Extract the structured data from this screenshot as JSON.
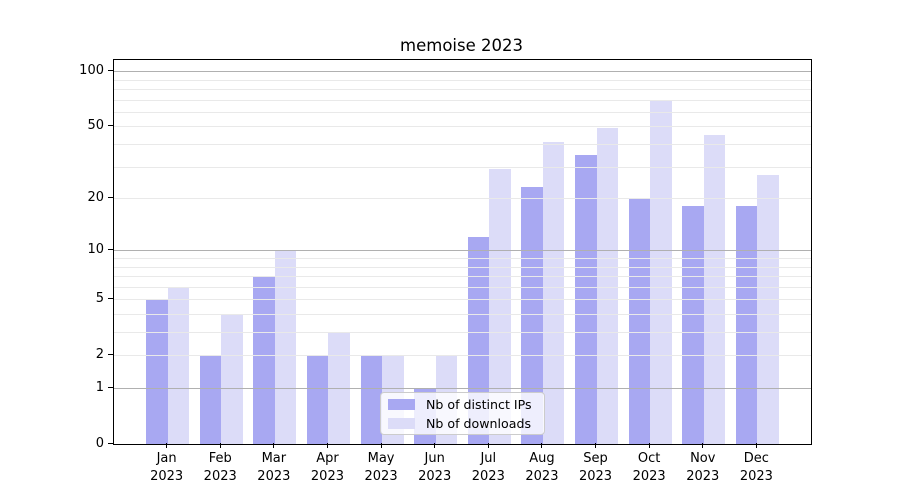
{
  "title": "memoise 2023",
  "chart_data": {
    "type": "bar",
    "x_categories": [
      "Jan",
      "Feb",
      "Mar",
      "Apr",
      "May",
      "Jun",
      "Jul",
      "Aug",
      "Sep",
      "Oct",
      "Nov",
      "Dec"
    ],
    "x_year": "2023",
    "series": [
      {
        "name": "Nb of distinct IPs",
        "color": "#a8a8f2",
        "values": [
          5,
          2,
          7,
          2,
          2,
          1,
          12,
          23,
          35,
          20,
          18,
          18
        ]
      },
      {
        "name": "Nb of downloads",
        "color": "#dcdcf8",
        "values": [
          6,
          4,
          10,
          3,
          2,
          2,
          29,
          41,
          49,
          70,
          45,
          27
        ]
      }
    ],
    "scale": "log1p",
    "ylim": [
      0,
      115
    ],
    "y_ticks": [
      0,
      1,
      2,
      5,
      10,
      20,
      50,
      100
    ],
    "y_grid_major": [
      1,
      10,
      100
    ],
    "y_grid_minor": [
      2,
      3,
      4,
      5,
      6,
      7,
      8,
      9,
      20,
      30,
      40,
      50,
      60,
      70,
      80,
      90
    ],
    "grid": true,
    "legend_position": "lower center"
  },
  "colors": {
    "grid_major": "#b0b0b0",
    "grid_minor": "#e9e9e9",
    "axis": "#000000",
    "background": "#ffffff",
    "legend_border": "#cccccc",
    "legend_bg": "rgba(255,255,255,0.8)"
  }
}
